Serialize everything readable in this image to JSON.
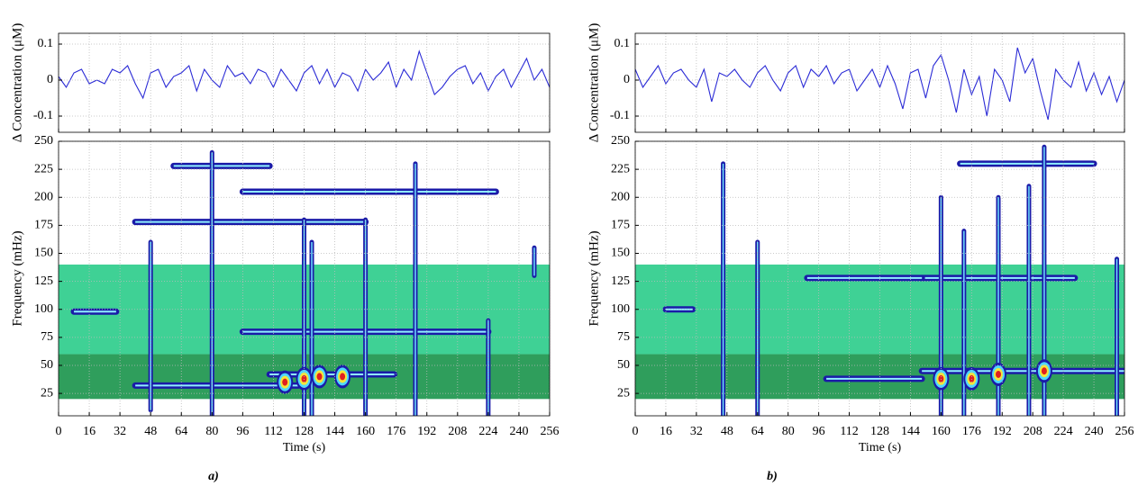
{
  "chart_data": [
    {
      "type": "line",
      "ylabel": "Δ Concentration (μM)",
      "ylim": [
        -0.145,
        0.13
      ],
      "yticks": [
        -0.1,
        0,
        0.1
      ],
      "xlim": [
        0,
        256
      ],
      "grid": true,
      "x": [
        0,
        4,
        8,
        12,
        16,
        20,
        24,
        28,
        32,
        36,
        40,
        44,
        48,
        52,
        56,
        60,
        64,
        68,
        72,
        76,
        80,
        84,
        88,
        92,
        96,
        100,
        104,
        108,
        112,
        116,
        120,
        124,
        128,
        132,
        136,
        140,
        144,
        148,
        152,
        156,
        160,
        164,
        168,
        172,
        176,
        180,
        184,
        188,
        192,
        196,
        200,
        204,
        208,
        212,
        216,
        220,
        224,
        228,
        232,
        236,
        240,
        244,
        248,
        252,
        256
      ],
      "series": [
        {
          "color": "#2b2bd6",
          "values": [
            0.01,
            -0.02,
            0.02,
            0.03,
            -0.01,
            0.0,
            -0.01,
            0.03,
            0.02,
            0.04,
            -0.01,
            -0.05,
            0.02,
            0.03,
            -0.02,
            0.01,
            0.02,
            0.04,
            -0.03,
            0.03,
            0.0,
            -0.02,
            0.04,
            0.01,
            0.02,
            -0.01,
            0.03,
            0.02,
            -0.02,
            0.03,
            0.0,
            -0.03,
            0.02,
            0.04,
            -0.01,
            0.03,
            -0.02,
            0.02,
            0.01,
            -0.03,
            0.03,
            0.0,
            0.02,
            0.05,
            -0.02,
            0.03,
            0.0,
            0.08,
            0.02,
            -0.04,
            -0.02,
            0.01,
            0.03,
            0.04,
            -0.01,
            0.02,
            -0.03,
            0.01,
            0.03,
            -0.02,
            0.02,
            0.06,
            0.0,
            0.03,
            -0.02
          ]
        }
      ]
    },
    {
      "type": "contour",
      "xlabel": "Time (s)",
      "ylabel": "Frequency (mHz)",
      "caption": "a)",
      "xlim": [
        0,
        256
      ],
      "ylim": [
        5,
        250
      ],
      "xticks": [
        0,
        16,
        32,
        48,
        64,
        80,
        96,
        112,
        128,
        144,
        160,
        176,
        192,
        208,
        224,
        240,
        256
      ],
      "yticks": [
        25,
        50,
        75,
        100,
        125,
        150,
        175,
        200,
        225,
        250
      ],
      "grid": true,
      "bands": [
        {
          "f": [
            20,
            60
          ],
          "color": "#2f9e5c"
        },
        {
          "f": [
            60,
            140
          ],
          "color": "#3fd195"
        }
      ],
      "horizontal_ridges": [
        {
          "t": [
            40,
            160
          ],
          "f": 178
        },
        {
          "t": [
            60,
            110
          ],
          "f": 228
        },
        {
          "t": [
            96,
            228
          ],
          "f": 205
        },
        {
          "t": [
            40,
            125
          ],
          "f": 32
        },
        {
          "t": [
            110,
            175
          ],
          "f": 42
        },
        {
          "t": [
            96,
            224
          ],
          "f": 80
        },
        {
          "t": [
            8,
            30
          ],
          "f": 98
        }
      ],
      "vertical_ridges": [
        {
          "t": 48,
          "f": [
            10,
            160
          ]
        },
        {
          "t": 80,
          "f": [
            5,
            240
          ]
        },
        {
          "t": 128,
          "f": [
            5,
            180
          ]
        },
        {
          "t": 132,
          "f": [
            5,
            160
          ]
        },
        {
          "t": 160,
          "f": [
            5,
            180
          ]
        },
        {
          "t": 186,
          "f": [
            5,
            230
          ]
        },
        {
          "t": 224,
          "f": [
            5,
            90
          ]
        },
        {
          "t": 248,
          "f": [
            130,
            155
          ]
        }
      ],
      "peaks": [
        {
          "t": 118,
          "f": 35
        },
        {
          "t": 128,
          "f": 38
        },
        {
          "t": 136,
          "f": 40
        },
        {
          "t": 148,
          "f": 40
        }
      ]
    },
    {
      "type": "line",
      "ylabel": "Δ Concentration (μM)",
      "ylim": [
        -0.145,
        0.13
      ],
      "yticks": [
        -0.1,
        0,
        0.1
      ],
      "xlim": [
        0,
        256
      ],
      "grid": true,
      "x": [
        0,
        4,
        8,
        12,
        16,
        20,
        24,
        28,
        32,
        36,
        40,
        44,
        48,
        52,
        56,
        60,
        64,
        68,
        72,
        76,
        80,
        84,
        88,
        92,
        96,
        100,
        104,
        108,
        112,
        116,
        120,
        124,
        128,
        132,
        136,
        140,
        144,
        148,
        152,
        156,
        160,
        164,
        168,
        172,
        176,
        180,
        184,
        188,
        192,
        196,
        200,
        204,
        208,
        212,
        216,
        220,
        224,
        228,
        232,
        236,
        240,
        244,
        248,
        252,
        256
      ],
      "series": [
        {
          "color": "#2b2bd6",
          "values": [
            0.03,
            -0.02,
            0.01,
            0.04,
            -0.01,
            0.02,
            0.03,
            0.0,
            -0.02,
            0.03,
            -0.06,
            0.02,
            0.01,
            0.03,
            0.0,
            -0.02,
            0.02,
            0.04,
            0.0,
            -0.03,
            0.02,
            0.04,
            -0.02,
            0.03,
            0.01,
            0.04,
            -0.01,
            0.02,
            0.03,
            -0.03,
            0.0,
            0.03,
            -0.02,
            0.04,
            -0.01,
            -0.08,
            0.02,
            0.03,
            -0.05,
            0.04,
            0.07,
            0.0,
            -0.09,
            0.03,
            -0.04,
            0.01,
            -0.1,
            0.03,
            0.0,
            -0.06,
            0.09,
            0.02,
            0.06,
            -0.03,
            -0.11,
            0.03,
            0.0,
            -0.02,
            0.05,
            -0.03,
            0.02,
            -0.04,
            0.01,
            -0.06,
            0.0
          ]
        }
      ]
    },
    {
      "type": "contour",
      "xlabel": "Time (s)",
      "ylabel": "Frequency (mHz)",
      "caption": "b)",
      "xlim": [
        0,
        256
      ],
      "ylim": [
        5,
        250
      ],
      "xticks": [
        0,
        16,
        32,
        48,
        64,
        80,
        96,
        112,
        128,
        144,
        160,
        176,
        192,
        208,
        224,
        240,
        256
      ],
      "yticks": [
        25,
        50,
        75,
        100,
        125,
        150,
        175,
        200,
        225,
        250
      ],
      "grid": true,
      "bands": [
        {
          "f": [
            20,
            60
          ],
          "color": "#2f9e5c"
        },
        {
          "f": [
            60,
            140
          ],
          "color": "#3fd195"
        }
      ],
      "horizontal_ridges": [
        {
          "t": [
            150,
            230
          ],
          "f": 128
        },
        {
          "t": [
            150,
            256
          ],
          "f": 45
        },
        {
          "t": [
            90,
            150
          ],
          "f": 128
        },
        {
          "t": [
            170,
            240
          ],
          "f": 230
        },
        {
          "t": [
            16,
            30
          ],
          "f": 100
        },
        {
          "t": [
            100,
            150
          ],
          "f": 38
        }
      ],
      "vertical_ridges": [
        {
          "t": 46,
          "f": [
            5,
            230
          ]
        },
        {
          "t": 64,
          "f": [
            5,
            160
          ]
        },
        {
          "t": 160,
          "f": [
            5,
            200
          ]
        },
        {
          "t": 172,
          "f": [
            5,
            170
          ]
        },
        {
          "t": 190,
          "f": [
            5,
            200
          ]
        },
        {
          "t": 206,
          "f": [
            5,
            210
          ]
        },
        {
          "t": 214,
          "f": [
            5,
            245
          ]
        },
        {
          "t": 252,
          "f": [
            5,
            145
          ]
        }
      ],
      "peaks": [
        {
          "t": 160,
          "f": 38
        },
        {
          "t": 176,
          "f": 38
        },
        {
          "t": 190,
          "f": 42
        },
        {
          "t": 214,
          "f": 45
        }
      ]
    }
  ]
}
